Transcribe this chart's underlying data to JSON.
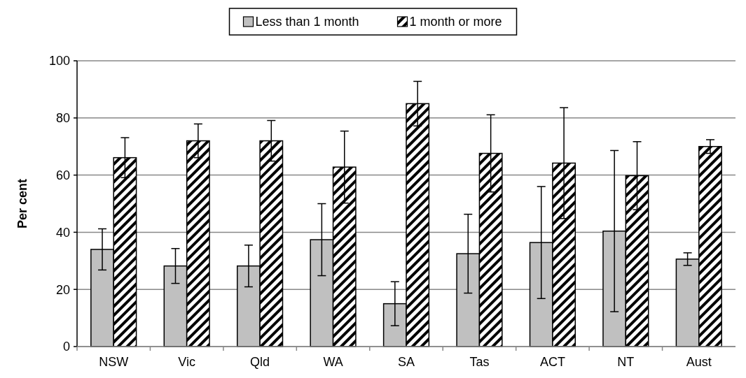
{
  "chart_data": {
    "type": "bar",
    "ylabel": "Per cent",
    "categories": [
      "NSW",
      "Vic",
      "Qld",
      "WA",
      "SA",
      "Tas",
      "ACT",
      "NT",
      "Aust"
    ],
    "ylim": [
      0,
      100
    ],
    "yticks": [
      0,
      20,
      40,
      60,
      80,
      100
    ],
    "grid": "y",
    "legend": "top",
    "series": [
      {
        "name": "Less than 1 month",
        "color": "#c0c0c0",
        "values": [
          34.0,
          28.2,
          28.2,
          37.4,
          15.0,
          32.5,
          36.4,
          40.4,
          30.6
        ],
        "errors": [
          7.2,
          6.1,
          7.3,
          12.6,
          7.7,
          13.8,
          19.6,
          28.2,
          2.2
        ]
      },
      {
        "name": "1 month or more",
        "color": "#000000",
        "values": [
          66.1,
          72.0,
          72.0,
          62.8,
          85.0,
          67.6,
          64.2,
          59.8,
          70.0
        ],
        "errors": [
          7.0,
          5.9,
          7.1,
          12.6,
          7.8,
          13.5,
          19.4,
          11.9,
          2.4
        ]
      }
    ]
  }
}
